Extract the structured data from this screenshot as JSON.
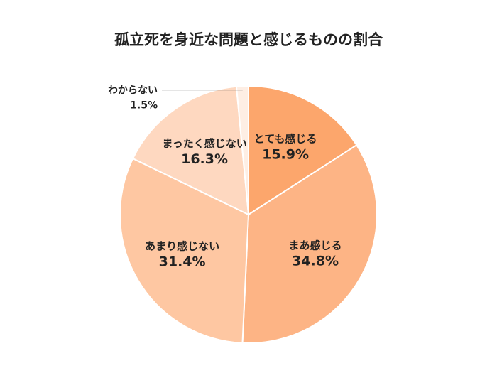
{
  "chart_data": {
    "type": "pie",
    "title": "孤立死を身近な問題と感じるものの割合",
    "slices": [
      {
        "label": "とても感じる",
        "value": 15.9,
        "value_label": "15.9%",
        "color": "#fca66c"
      },
      {
        "label": "まあ感じる",
        "value": 34.8,
        "value_label": "34.8%",
        "color": "#fdb485"
      },
      {
        "label": "あまり感じない",
        "value": 31.4,
        "value_label": "31.4%",
        "color": "#fec7a2"
      },
      {
        "label": "まったく感じない",
        "value": 16.3,
        "value_label": "16.3%",
        "color": "#fed8c0"
      },
      {
        "label": "わからない",
        "value": 1.5,
        "value_label": "1.5%",
        "color": "#feeee4"
      }
    ],
    "legend": "none",
    "slice_order": "clockwise from 12 o'clock",
    "label_position": "inside slices; smallest slice labeled outside with leader line at top-left"
  }
}
